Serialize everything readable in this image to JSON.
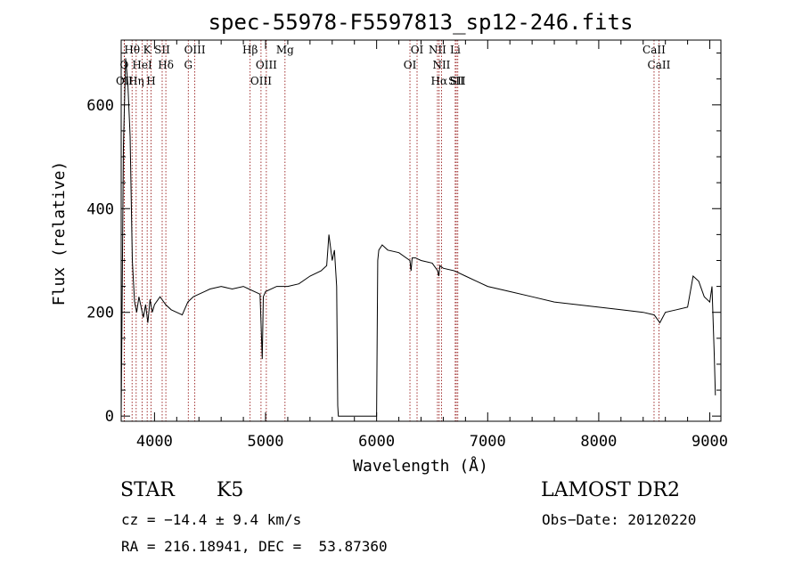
{
  "chart_data": {
    "type": "line",
    "title": "spec-55978-F5597813_sp12-246.fits",
    "xlabel": "Wavelength (Å)",
    "ylabel": "Flux (relative)",
    "xlim": [
      3700,
      9100
    ],
    "ylim": [
      -10,
      725
    ],
    "xticks": [
      4000,
      5000,
      6000,
      7000,
      8000,
      9000
    ],
    "yticks": [
      0,
      200,
      400,
      600
    ],
    "grid": false,
    "series": [
      {
        "x": [
          3700,
          3720,
          3740,
          3760,
          3780,
          3800,
          3820,
          3840,
          3860,
          3880,
          3900,
          3920,
          3940,
          3960,
          3980,
          4000,
          4050,
          4100,
          4150,
          4200,
          4250,
          4300,
          4350,
          4400,
          4450,
          4500,
          4600,
          4700,
          4800,
          4850,
          4900,
          4950,
          4970,
          4980,
          5000,
          5100,
          5200,
          5300,
          5400,
          5500,
          5550,
          5570,
          5600,
          5620,
          5640,
          5650,
          5655,
          6000,
          6010,
          6020,
          6050,
          6100,
          6200,
          6300,
          6310,
          6320,
          6350,
          6400,
          6500,
          6550,
          6560,
          6570,
          6600,
          6700,
          6800,
          6900,
          7000,
          7200,
          7400,
          7600,
          7800,
          8000,
          8200,
          8400,
          8500,
          8550,
          8600,
          8700,
          8800,
          8850,
          8900,
          8950,
          9000,
          9020,
          9040,
          9050
        ],
        "values": [
          0,
          520,
          690,
          640,
          540,
          300,
          220,
          200,
          230,
          210,
          190,
          215,
          180,
          225,
          200,
          215,
          230,
          215,
          205,
          200,
          195,
          220,
          230,
          235,
          240,
          245,
          250,
          245,
          250,
          245,
          240,
          235,
          110,
          230,
          240,
          250,
          250,
          255,
          270,
          280,
          290,
          350,
          300,
          320,
          250,
          20,
          0,
          0,
          300,
          320,
          330,
          320,
          315,
          300,
          280,
          305,
          305,
          300,
          295,
          280,
          270,
          290,
          285,
          280,
          270,
          260,
          250,
          240,
          230,
          220,
          215,
          210,
          205,
          200,
          195,
          180,
          200,
          205,
          210,
          270,
          260,
          230,
          220,
          250,
          120,
          40
        ]
      }
    ],
    "lines": [
      {
        "label": "Hθ",
        "x": 3798,
        "color": "#8b0000"
      },
      {
        "label": "O",
        "x": 3727,
        "color": "#8b0000"
      },
      {
        "label": "OII",
        "x": 3729,
        "color": "#8b0000"
      },
      {
        "label": "K",
        "x": 3934,
        "color": "#8b0000"
      },
      {
        "label": "HeI",
        "x": 3889,
        "color": "#8b0000"
      },
      {
        "label": "Hη",
        "x": 3835,
        "color": "#8b0000"
      },
      {
        "label": "SII",
        "x": 4069,
        "color": "#8b0000"
      },
      {
        "label": "H",
        "x": 3969,
        "color": "#8b0000"
      },
      {
        "label": "Hδ",
        "x": 4102,
        "color": "#8b0000"
      },
      {
        "label": "OIII",
        "x": 4363,
        "color": "#8b0000"
      },
      {
        "label": "G",
        "x": 4304,
        "color": "#8b0000"
      },
      {
        "label": "Hβ",
        "x": 4861,
        "color": "#8b0000"
      },
      {
        "label": "OIII",
        "x": 5007,
        "color": "#8b0000"
      },
      {
        "label": "OIII",
        "x": 4959,
        "color": "#8b0000"
      },
      {
        "label": "Mg",
        "x": 5175,
        "color": "#8b0000"
      },
      {
        "label": "OI",
        "x": 6364,
        "color": "#8b0000"
      },
      {
        "label": "OI",
        "x": 6300,
        "color": "#8b0000"
      },
      {
        "label": "NII",
        "x": 6548,
        "color": "#8b0000"
      },
      {
        "label": "NII",
        "x": 6584,
        "color": "#8b0000"
      },
      {
        "label": "Hα",
        "x": 6563,
        "color": "#8b0000"
      },
      {
        "label": "Li",
        "x": 6708,
        "color": "#8b0000"
      },
      {
        "label": "SII",
        "x": 6717,
        "color": "#8b0000"
      },
      {
        "label": "SII",
        "x": 6731,
        "color": "#8b0000"
      },
      {
        "label": "CaII",
        "x": 8498,
        "color": "#8b0000"
      },
      {
        "label": "CaII",
        "x": 8542,
        "color": "#8b0000"
      }
    ]
  },
  "info": {
    "class": "STAR",
    "subclass": "K5",
    "survey": "LAMOST DR2",
    "cz": "cz = −14.4 ± 9.4 km/s",
    "obs_date": "Obs−Date: 20120220",
    "coords": "RA = 216.18941, DEC =  53.87360"
  }
}
